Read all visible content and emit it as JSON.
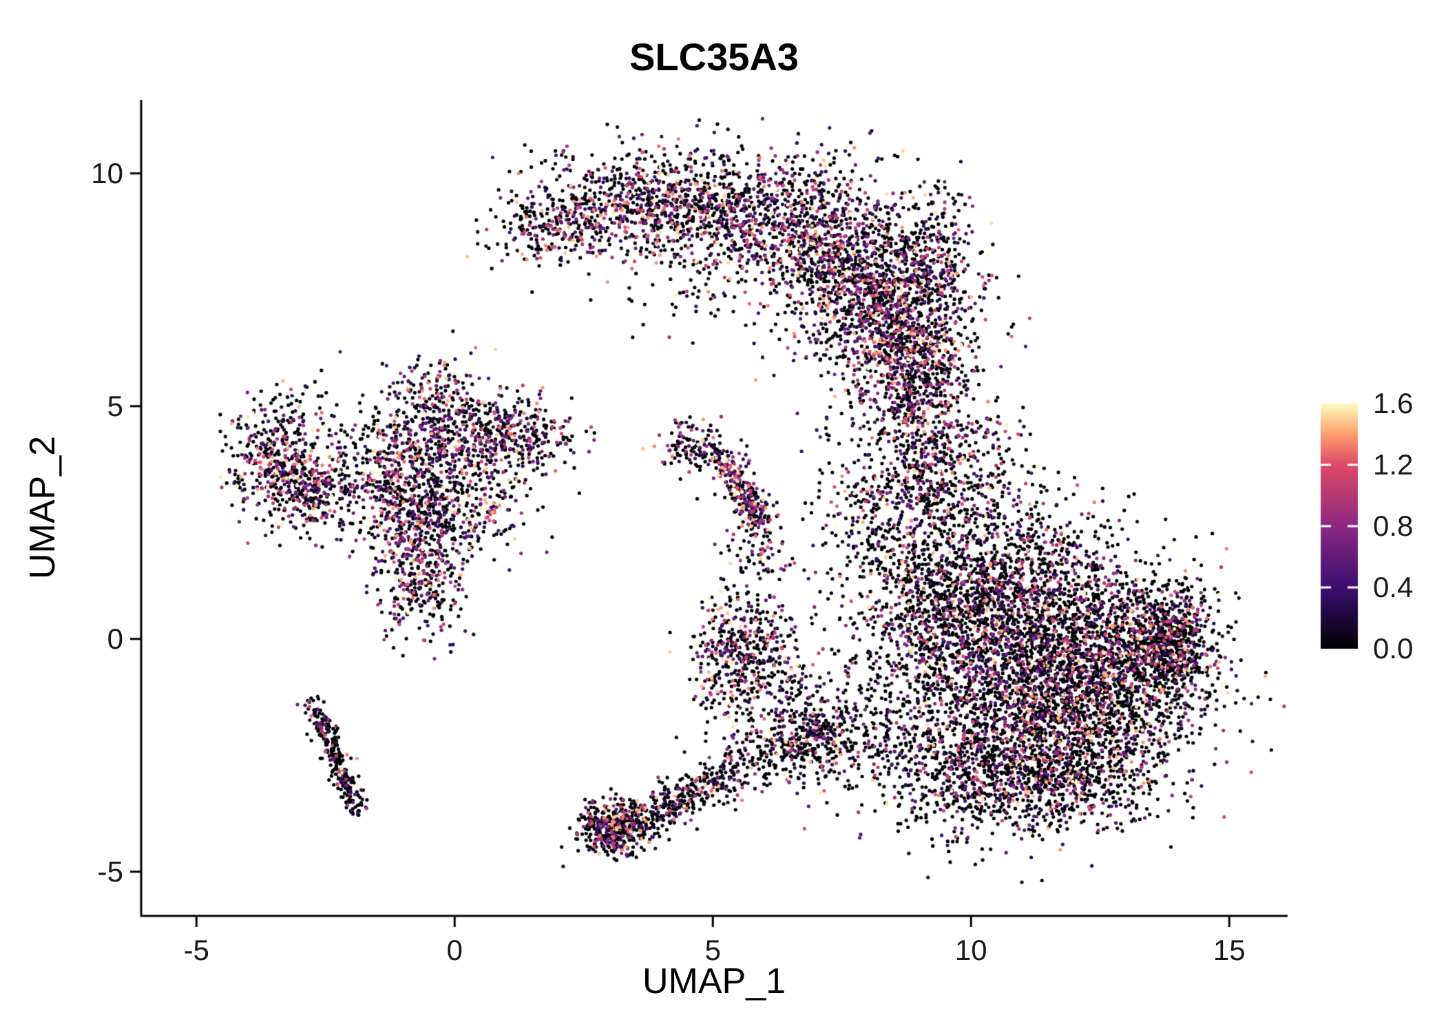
{
  "title": "SLC35A3",
  "chart_data": {
    "type": "scatter",
    "title": "SLC35A3",
    "xlabel": "UMAP_1",
    "ylabel": "UMAP_2",
    "xlim": [
      -6.07,
      16.13
    ],
    "ylim": [
      -5.95,
      11.58
    ],
    "xticks": [
      -5,
      0,
      5,
      10,
      15
    ],
    "yticks": [
      -5,
      0,
      5,
      10
    ],
    "xtick_labels": [
      "-5",
      "0",
      "5",
      "10",
      "15"
    ],
    "ytick_labels": [
      "-5",
      "0",
      "5",
      "10"
    ],
    "grid": false,
    "background": "#ffffff",
    "axis_color": "#000000",
    "point_radius_px": 2.6,
    "seed": 42,
    "colorbar": {
      "domain": [
        0,
        1.6
      ],
      "ticks": [
        0.0,
        0.4,
        0.8,
        1.2,
        1.6
      ],
      "tick_labels": [
        "0.0",
        "0.4",
        "0.8",
        "1.2",
        "1.6"
      ],
      "position": "right",
      "stops": [
        [
          0.0,
          "#000004"
        ],
        [
          0.25,
          "#3b0f70"
        ],
        [
          0.5,
          "#8c2981"
        ],
        [
          0.75,
          "#de4968"
        ],
        [
          0.875,
          "#fe9f6d"
        ],
        [
          1.0,
          "#fcfdbf"
        ]
      ]
    },
    "value_model": {
      "nonzero_min": 0.25,
      "nonzero_span": 1.35,
      "nonzero_skew": 1.6
    },
    "clusters": [
      {
        "t": "g",
        "n": 900,
        "x": 4.2,
        "y": 9.3,
        "sx": 1.3,
        "sy": 0.55,
        "rot": -8,
        "f": 0.45
      },
      {
        "t": "g",
        "n": 1100,
        "x": 7.1,
        "y": 8.7,
        "sx": 1.2,
        "sy": 0.75,
        "rot": -25,
        "f": 0.45
      },
      {
        "t": "g",
        "n": 900,
        "x": 8.3,
        "y": 7.3,
        "sx": 0.85,
        "sy": 0.85,
        "rot": 0,
        "f": 0.45
      },
      {
        "t": "g",
        "n": 500,
        "x": 8.8,
        "y": 6.1,
        "sx": 0.55,
        "sy": 0.7,
        "rot": 0,
        "f": 0.45
      },
      {
        "t": "g",
        "n": 260,
        "x": 2.1,
        "y": 8.9,
        "sx": 0.75,
        "sy": 0.4,
        "rot": 12,
        "f": 0.45
      },
      {
        "t": "g",
        "n": 130,
        "x": 5.0,
        "y": 7.9,
        "sx": 1.0,
        "sy": 0.7,
        "rot": 0,
        "f": 0.4
      },
      {
        "t": "g",
        "n": 130,
        "x": 9.35,
        "y": 8.5,
        "sx": 0.3,
        "sy": 0.75,
        "rot": 0,
        "f": 0.45
      },
      {
        "t": "g",
        "n": 320,
        "x": 9.0,
        "y": 4.7,
        "sx": 0.5,
        "sy": 0.95,
        "rot": 0,
        "f": 0.4
      },
      {
        "t": "g",
        "n": 260,
        "x": 8.6,
        "y": 2.9,
        "sx": 0.75,
        "sy": 0.6,
        "rot": 0,
        "f": 0.4
      },
      {
        "t": "g",
        "n": 300,
        "x": 9.8,
        "y": 3.6,
        "sx": 0.7,
        "sy": 0.8,
        "rot": 0,
        "f": 0.4
      },
      {
        "t": "g",
        "n": 1500,
        "x": 10.7,
        "y": 1.0,
        "sx": 1.2,
        "sy": 1.0,
        "rot": 0,
        "f": 0.32
      },
      {
        "t": "g",
        "n": 2200,
        "x": 11.3,
        "y": -1.3,
        "sx": 1.5,
        "sy": 1.05,
        "rot": 0,
        "f": 0.3
      },
      {
        "t": "g",
        "n": 900,
        "x": 12.9,
        "y": -0.3,
        "sx": 0.9,
        "sy": 0.8,
        "rot": 0,
        "f": 0.3
      },
      {
        "t": "g",
        "n": 500,
        "x": 13.9,
        "y": 0.0,
        "sx": 0.4,
        "sy": 0.55,
        "rot": 0,
        "f": 0.35
      },
      {
        "t": "g",
        "n": 700,
        "x": 10.3,
        "y": -3.0,
        "sx": 1.2,
        "sy": 0.65,
        "rot": 0,
        "f": 0.28
      },
      {
        "t": "g",
        "n": 420,
        "x": 12.2,
        "y": -2.9,
        "sx": 0.9,
        "sy": 0.55,
        "rot": 0,
        "f": 0.28
      },
      {
        "t": "g",
        "n": 380,
        "x": 9.3,
        "y": 0.4,
        "sx": 0.7,
        "sy": 0.9,
        "rot": 0,
        "f": 0.32
      },
      {
        "t": "g",
        "n": 160,
        "x": 8.2,
        "y": 1.6,
        "sx": 0.7,
        "sy": 1.1,
        "rot": 0,
        "f": 0.3
      },
      {
        "t": "g",
        "n": 450,
        "x": 5.6,
        "y": -0.3,
        "sx": 0.5,
        "sy": 0.7,
        "rot": 0,
        "f": 0.45
      },
      {
        "t": "g",
        "n": 240,
        "x": 6.4,
        "y": -1.7,
        "sx": 0.7,
        "sy": 0.65,
        "rot": 0,
        "f": 0.35
      },
      {
        "t": "g",
        "n": 200,
        "x": 7.4,
        "y": -2.2,
        "sx": 0.8,
        "sy": 0.5,
        "rot": 0,
        "f": 0.3
      },
      {
        "t": "l",
        "n": 430,
        "x1": 2.9,
        "y1": -4.2,
        "x2": 5.4,
        "y2": -2.9,
        "j": 0.25,
        "f": 0.3
      },
      {
        "t": "g",
        "n": 330,
        "x": 3.05,
        "y": -4.05,
        "sx": 0.35,
        "sy": 0.3,
        "rot": 0,
        "f": 0.35
      },
      {
        "t": "l",
        "n": 190,
        "x1": 5.4,
        "y1": -2.9,
        "x2": 7.6,
        "y2": -2.0,
        "j": 0.3,
        "f": 0.25
      },
      {
        "t": "g",
        "n": 350,
        "x": -3.5,
        "y": 4.0,
        "sx": 0.5,
        "sy": 0.6,
        "rot": 0,
        "f": 0.45
      },
      {
        "t": "g",
        "n": 260,
        "x": -2.8,
        "y": 3.1,
        "sx": 0.5,
        "sy": 0.45,
        "rot": 0,
        "f": 0.45
      },
      {
        "t": "g",
        "n": 500,
        "x": -0.6,
        "y": 3.9,
        "sx": 0.9,
        "sy": 0.65,
        "rot": 0,
        "f": 0.45
      },
      {
        "t": "g",
        "n": 450,
        "x": -0.4,
        "y": 2.7,
        "sx": 0.8,
        "sy": 0.55,
        "rot": 0,
        "f": 0.45
      },
      {
        "t": "g",
        "n": 340,
        "x": -0.7,
        "y": 1.4,
        "sx": 0.4,
        "sy": 0.75,
        "rot": 0,
        "f": 0.45
      },
      {
        "t": "g",
        "n": 260,
        "x": 0.6,
        "y": 4.4,
        "sx": 0.8,
        "sy": 0.45,
        "rot": 0,
        "f": 0.45
      },
      {
        "t": "g",
        "n": 120,
        "x": -0.3,
        "y": 5.3,
        "sx": 0.45,
        "sy": 0.4,
        "rot": 0,
        "f": 0.45
      },
      {
        "t": "g",
        "n": 150,
        "x": 1.3,
        "y": 4.4,
        "sx": 0.5,
        "sy": 0.4,
        "rot": 0,
        "f": 0.45
      },
      {
        "t": "g",
        "n": 130,
        "x": -1.8,
        "y": 3.7,
        "sx": 0.8,
        "sy": 0.7,
        "rot": 0,
        "f": 0.4
      },
      {
        "t": "l",
        "n": 260,
        "x1": -2.75,
        "y1": -1.35,
        "x2": -1.85,
        "y2": -3.75,
        "j": 0.12,
        "f": 0.22
      },
      {
        "t": "g",
        "n": 120,
        "x": 4.6,
        "y": 4.1,
        "sx": 0.35,
        "sy": 0.3,
        "rot": 0,
        "f": 0.4
      },
      {
        "t": "l",
        "n": 280,
        "x1": 5.2,
        "y1": 3.9,
        "x2": 6.0,
        "y2": 2.3,
        "j": 0.17,
        "f": 0.55
      },
      {
        "t": "g",
        "n": 60,
        "x": 6.0,
        "y": 1.8,
        "sx": 0.35,
        "sy": 0.3,
        "rot": 0,
        "f": 0.4
      },
      {
        "t": "g",
        "n": 70,
        "x": 7.9,
        "y": 4.8,
        "sx": 0.9,
        "sy": 1.2,
        "rot": 0,
        "f": 0.3
      }
    ]
  }
}
